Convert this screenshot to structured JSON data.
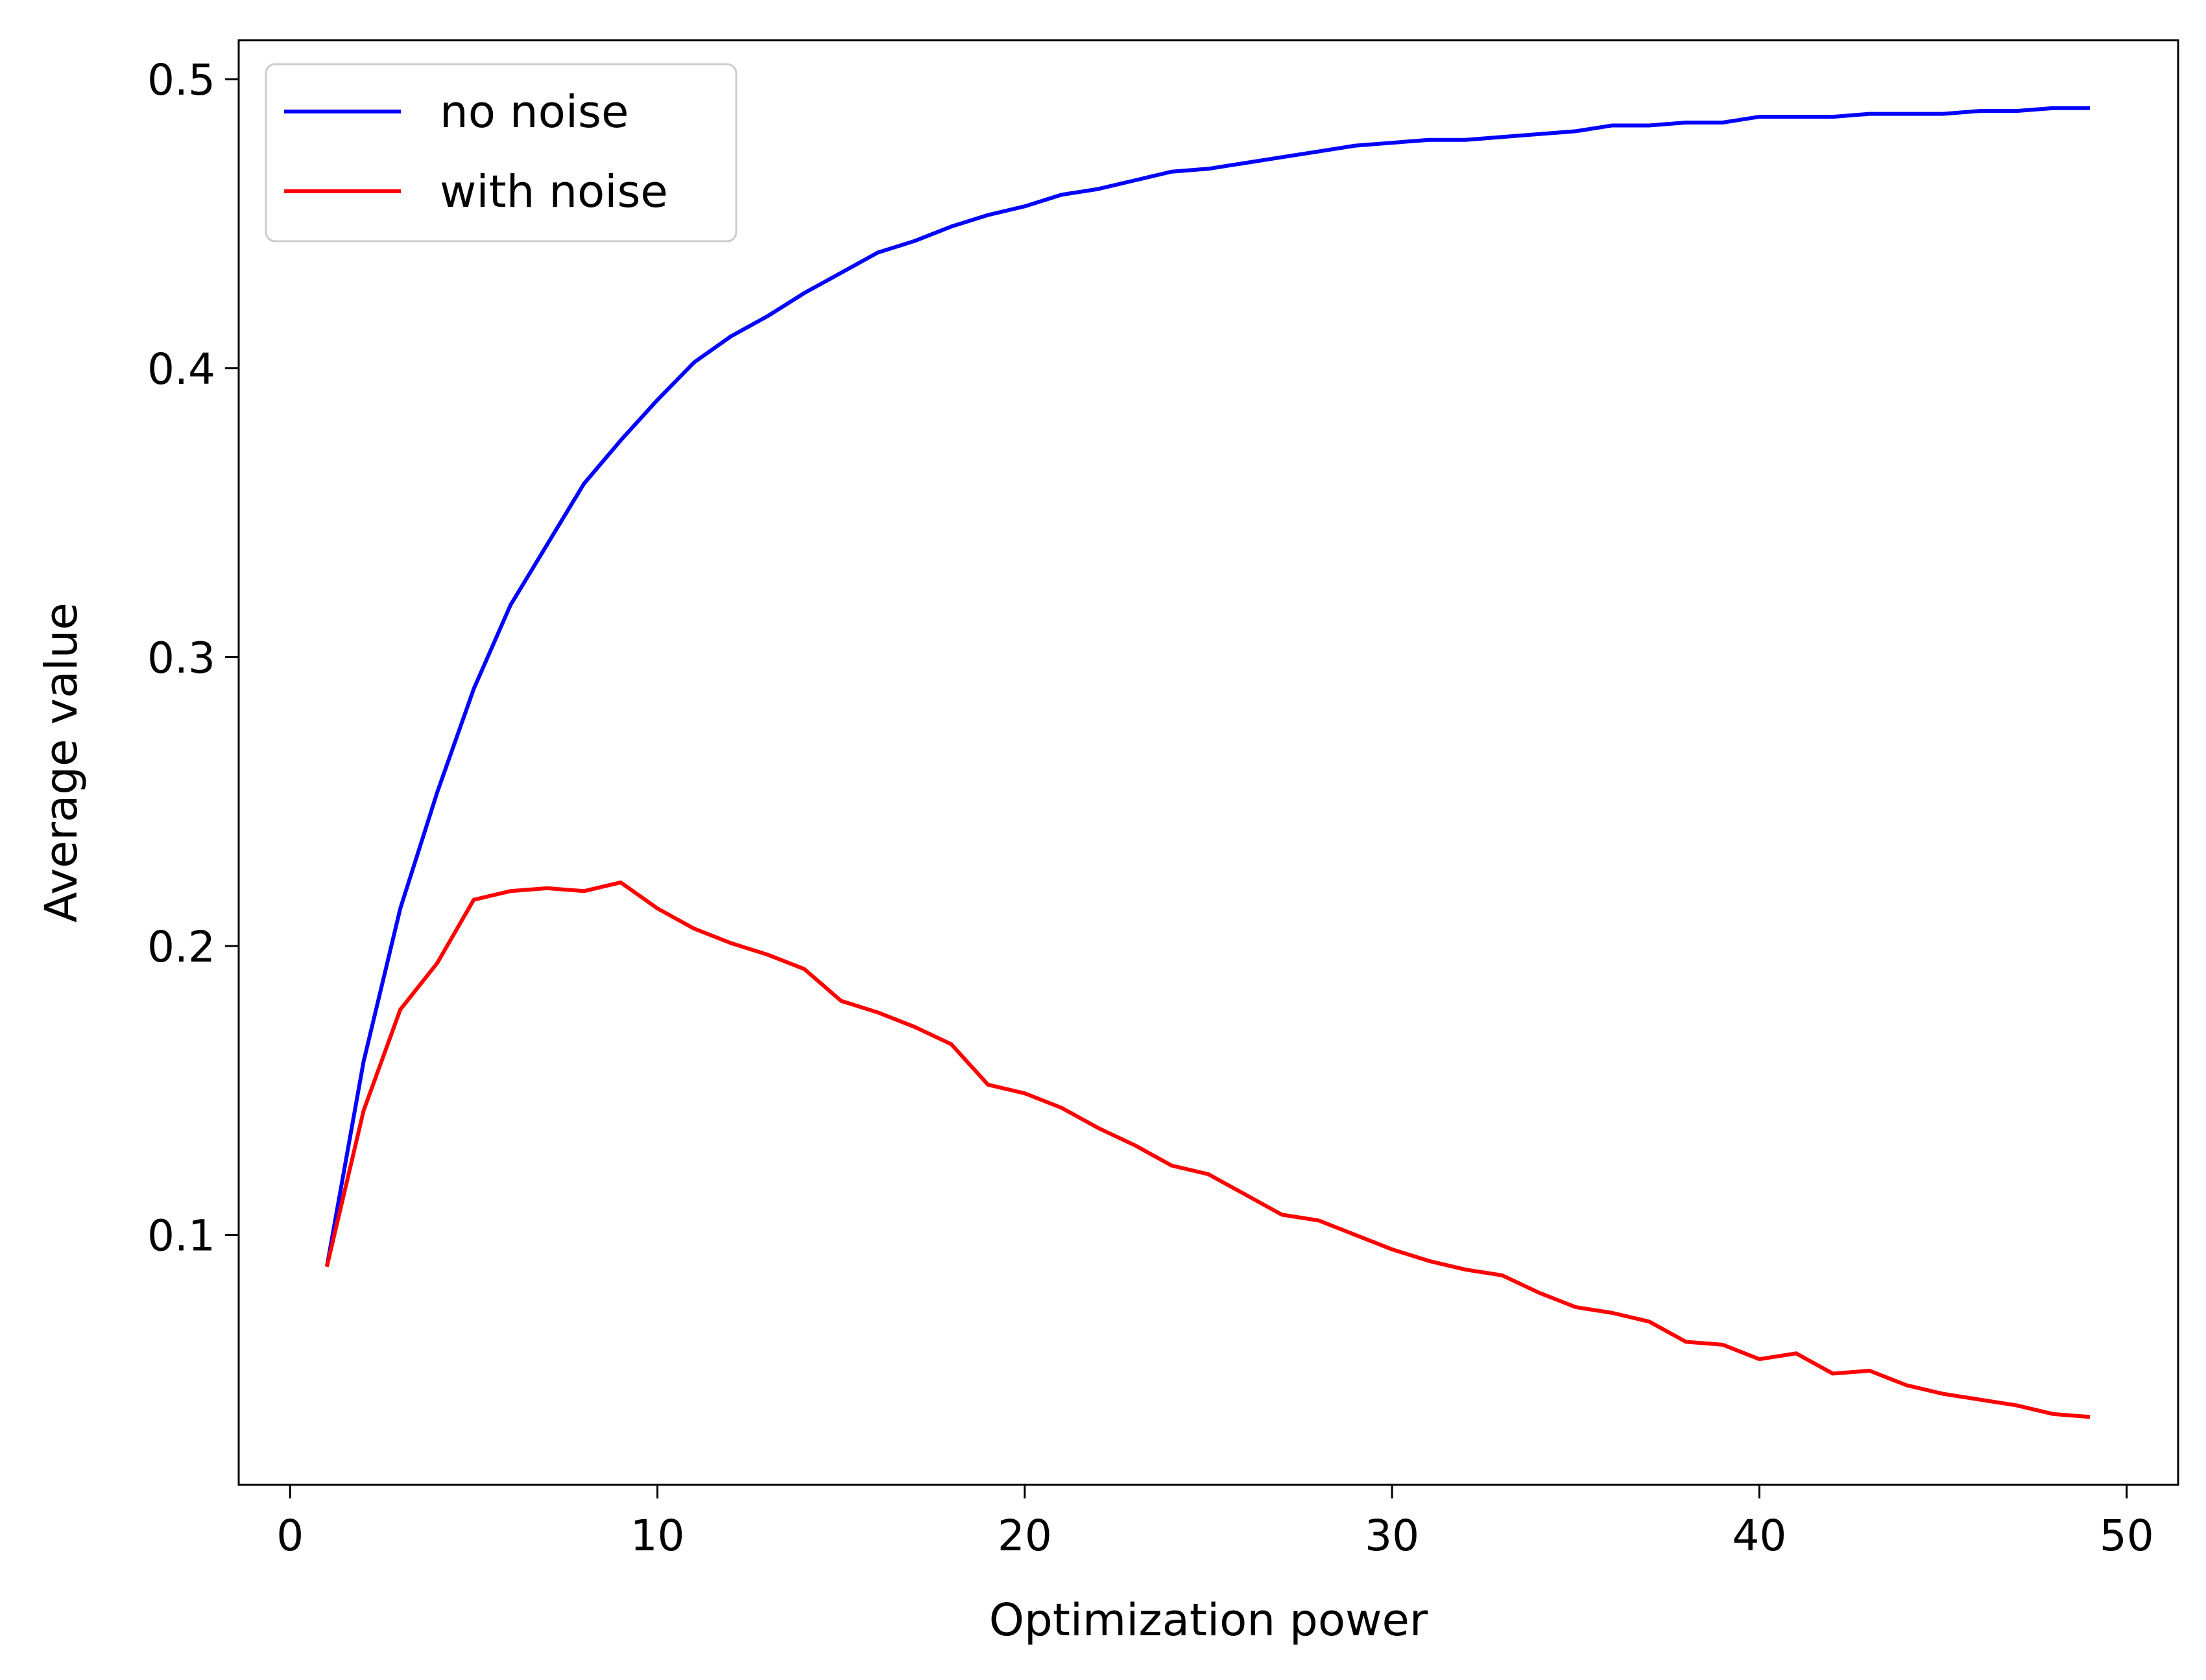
{
  "chart_data": {
    "type": "line",
    "title": "",
    "xlabel": "Optimization power",
    "ylabel": "Average value",
    "xlim": [
      -1.4,
      51.4
    ],
    "ylim": [
      0.0135,
      0.5135
    ],
    "xticks": [
      0,
      10,
      20,
      30,
      40,
      50
    ],
    "xtick_labels": [
      "0",
      "10",
      "20",
      "30",
      "40",
      "50"
    ],
    "yticks": [
      0.1,
      0.2,
      0.3,
      0.4,
      0.5
    ],
    "ytick_labels": [
      "0.1",
      "0.2",
      "0.3",
      "0.4",
      "0.5"
    ],
    "grid": false,
    "legend_position": "upper-left",
    "x": [
      1,
      2,
      3,
      4,
      5,
      6,
      7,
      8,
      9,
      10,
      11,
      12,
      13,
      14,
      15,
      16,
      17,
      18,
      19,
      20,
      21,
      22,
      23,
      24,
      25,
      26,
      27,
      28,
      29,
      30,
      31,
      32,
      33,
      34,
      35,
      36,
      37,
      38,
      39,
      40,
      41,
      42,
      43,
      44,
      45,
      46,
      47,
      48,
      49
    ],
    "series": [
      {
        "name": "no noise",
        "color": "#0000ff",
        "values": [
          0.089,
          0.16,
          0.213,
          0.253,
          0.289,
          0.318,
          0.339,
          0.36,
          0.375,
          0.389,
          0.402,
          0.411,
          0.418,
          0.426,
          0.433,
          0.44,
          0.444,
          0.449,
          0.453,
          0.456,
          0.46,
          0.462,
          0.465,
          0.468,
          0.469,
          0.471,
          0.473,
          0.475,
          0.477,
          0.478,
          0.479,
          0.479,
          0.48,
          0.481,
          0.482,
          0.484,
          0.484,
          0.485,
          0.485,
          0.487,
          0.487,
          0.487,
          0.488,
          0.488,
          0.488,
          0.489,
          0.489,
          0.49,
          0.49
        ]
      },
      {
        "name": "with noise",
        "color": "#ff0000",
        "values": [
          0.089,
          0.143,
          0.178,
          0.194,
          0.216,
          0.219,
          0.22,
          0.219,
          0.222,
          0.213,
          0.206,
          0.201,
          0.197,
          0.192,
          0.181,
          0.177,
          0.172,
          0.166,
          0.152,
          0.149,
          0.144,
          0.137,
          0.131,
          0.124,
          0.121,
          0.114,
          0.107,
          0.105,
          0.1,
          0.095,
          0.091,
          0.088,
          0.086,
          0.08,
          0.075,
          0.073,
          0.07,
          0.063,
          0.062,
          0.057,
          0.059,
          0.052,
          0.053,
          0.048,
          0.045,
          0.043,
          0.041,
          0.038,
          0.037
        ]
      }
    ]
  }
}
